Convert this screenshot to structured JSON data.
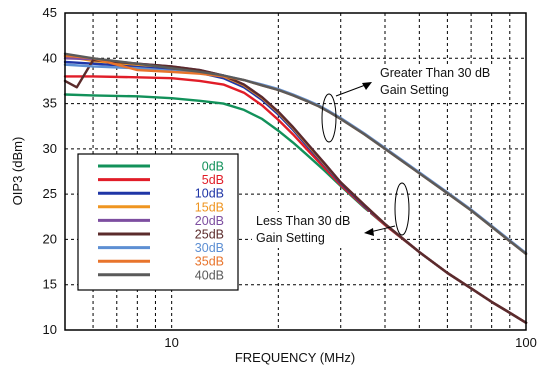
{
  "chart_data": {
    "type": "line",
    "xlabel": "FREQUENCY (MHz)",
    "ylabel": "OIP3 (dBm)",
    "x_scale": "log",
    "xlim": [
      5,
      100
    ],
    "ylim": [
      10,
      45
    ],
    "x_tick_labels": [
      "10",
      "100"
    ],
    "y_tick_labels": [
      "10",
      "15",
      "20",
      "25",
      "30",
      "35",
      "40",
      "45"
    ],
    "grid": "dashed, log minor",
    "legend_placement": "left-middle",
    "annotations": [
      {
        "line1": "Greater Than 30 dB",
        "line2": "Gain Setting"
      },
      {
        "line1": "Less Than 30 dB",
        "line2": "Gain Setting"
      }
    ],
    "series": [
      {
        "name": "0dB",
        "color": "#12915a",
        "x": [
          5,
          6,
          8,
          10,
          12,
          14,
          16,
          18,
          20,
          22,
          24,
          27,
          30,
          35,
          40,
          50,
          60,
          70,
          80,
          90,
          100
        ],
        "y": [
          36.0,
          35.9,
          35.8,
          35.6,
          35.3,
          35.0,
          34.3,
          33.3,
          32.0,
          30.7,
          29.4,
          27.6,
          25.9,
          23.5,
          21.6,
          18.6,
          16.3,
          14.6,
          13.1,
          11.9,
          10.8
        ]
      },
      {
        "name": "5dB",
        "color": "#e11d28",
        "x": [
          5,
          6,
          8,
          10,
          12,
          14,
          16,
          18,
          20,
          22,
          24,
          27,
          30,
          35,
          40,
          50,
          60,
          70,
          80,
          90,
          100
        ],
        "y": [
          38.0,
          38.0,
          37.9,
          37.8,
          37.5,
          37.1,
          36.2,
          34.8,
          33.2,
          31.6,
          30.0,
          27.9,
          26.0,
          23.6,
          21.6,
          18.6,
          16.3,
          14.6,
          13.1,
          11.9,
          10.8
        ]
      },
      {
        "name": "10dB",
        "color": "#1f35a6",
        "x": [
          5,
          6,
          8,
          10,
          12,
          14,
          16,
          18,
          20,
          22,
          24,
          27,
          30,
          35,
          40,
          50,
          60,
          70,
          80,
          90,
          100
        ],
        "y": [
          39.6,
          39.4,
          39.1,
          38.8,
          38.4,
          37.8,
          36.8,
          35.4,
          33.8,
          32.1,
          30.4,
          28.2,
          26.2,
          23.7,
          21.7,
          18.6,
          16.3,
          14.6,
          13.1,
          11.9,
          10.8
        ]
      },
      {
        "name": "15dB",
        "color": "#ef9521",
        "x": [
          5,
          6,
          8,
          10,
          12,
          14,
          16,
          18,
          20,
          22,
          24,
          27,
          30,
          35,
          40,
          50,
          60,
          70,
          80,
          90,
          100
        ],
        "y": [
          40.2,
          39.7,
          39.3,
          39.0,
          38.6,
          38.0,
          37.0,
          35.6,
          34.0,
          32.3,
          30.6,
          28.3,
          26.3,
          23.8,
          21.7,
          18.6,
          16.3,
          14.6,
          13.1,
          11.9,
          10.8
        ]
      },
      {
        "name": "20dB",
        "color": "#7d4ea0",
        "x": [
          5,
          6,
          8,
          10,
          12,
          14,
          16,
          18,
          20,
          22,
          24,
          27,
          30,
          35,
          40,
          50,
          60,
          70,
          80,
          90,
          100
        ],
        "y": [
          40.0,
          39.9,
          39.4,
          39.1,
          38.7,
          38.1,
          37.1,
          35.7,
          34.1,
          32.4,
          30.7,
          28.4,
          26.3,
          23.8,
          21.7,
          18.6,
          16.3,
          14.6,
          13.1,
          11.9,
          10.8
        ]
      },
      {
        "name": "25dB",
        "color": "#5b2b2b",
        "x": [
          5,
          5.4,
          6,
          8,
          10,
          12,
          14,
          16,
          18,
          20,
          22,
          24,
          27,
          30,
          35,
          40,
          50,
          60,
          70,
          80,
          90,
          100
        ],
        "y": [
          37.5,
          36.8,
          39.8,
          39.4,
          39.1,
          38.7,
          38.1,
          37.1,
          35.7,
          34.1,
          32.4,
          30.7,
          28.4,
          26.3,
          23.8,
          21.7,
          18.6,
          16.3,
          14.6,
          13.1,
          11.9,
          10.8
        ]
      },
      {
        "name": "30dB",
        "color": "#5d8fd3",
        "x": [
          5,
          6,
          8,
          10,
          12,
          14,
          16,
          18,
          20,
          22,
          24,
          26,
          28,
          30,
          35,
          40,
          50,
          60,
          70,
          80,
          90,
          100
        ],
        "y": [
          39.3,
          39.1,
          38.9,
          38.6,
          38.4,
          38.1,
          37.6,
          37.1,
          36.6,
          36.0,
          35.4,
          34.8,
          34.1,
          33.4,
          31.7,
          30.1,
          27.4,
          25.2,
          23.3,
          21.5,
          19.9,
          18.5
        ]
      },
      {
        "name": "35dB",
        "color": "#e8742c",
        "x": [
          5,
          6,
          8,
          10,
          12,
          14,
          16,
          18,
          20,
          22,
          24,
          26,
          28,
          30,
          35,
          40,
          50,
          60,
          70,
          80,
          90,
          100
        ],
        "y": [
          40.3,
          40.0,
          38.7,
          38.5,
          38.3,
          38.0,
          37.6,
          37.0,
          36.5,
          35.9,
          35.3,
          34.7,
          34.0,
          33.3,
          31.6,
          30.0,
          27.3,
          25.1,
          23.2,
          21.4,
          19.8,
          18.4
        ]
      },
      {
        "name": "40dB",
        "color": "#5a5a5a",
        "x": [
          5,
          6,
          8,
          10,
          12,
          14,
          16,
          18,
          20,
          22,
          24,
          26,
          28,
          30,
          35,
          40,
          50,
          60,
          70,
          80,
          90,
          100
        ],
        "y": [
          40.5,
          40.0,
          39.4,
          38.9,
          38.5,
          38.1,
          37.6,
          37.0,
          36.5,
          35.9,
          35.3,
          34.7,
          34.0,
          33.3,
          31.6,
          30.0,
          27.3,
          25.1,
          23.2,
          21.4,
          19.8,
          18.4
        ]
      }
    ]
  }
}
